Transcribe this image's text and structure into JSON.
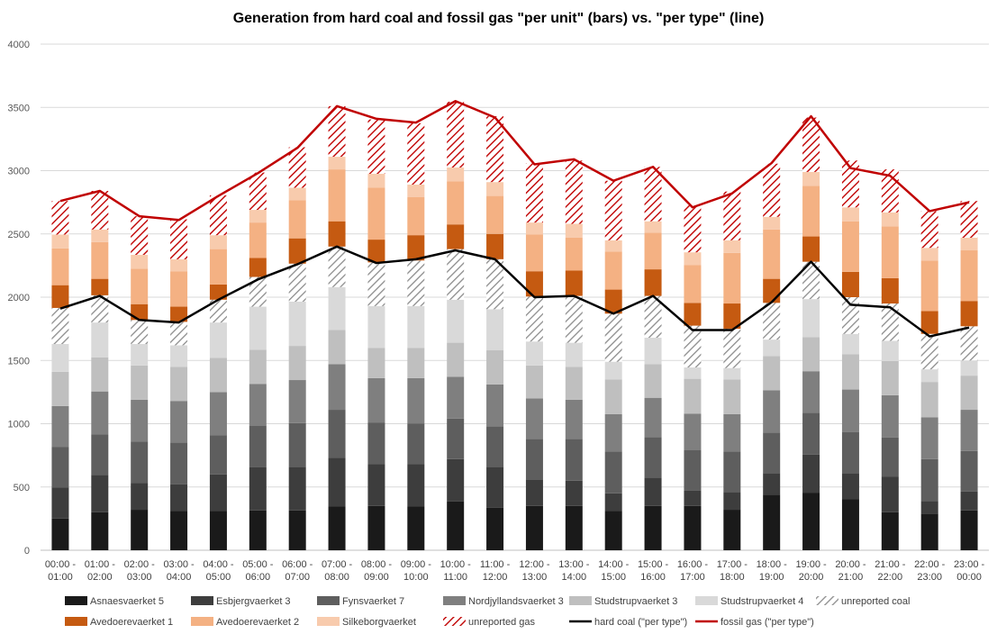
{
  "chart_data": {
    "type": "bar",
    "title": "Generation from hard coal and fossil gas \"per unit\" (bars) vs. \"per type\" (line)",
    "xlabel": "",
    "ylabel": "",
    "ylim": [
      0,
      4000
    ],
    "yticks": [
      0,
      500,
      1000,
      1500,
      2000,
      2500,
      3000,
      3500,
      4000
    ],
    "grid": true,
    "legend_position": "bottom",
    "categories": [
      [
        "00:00 -",
        "01:00"
      ],
      [
        "01:00 -",
        "02:00"
      ],
      [
        "02:00 -",
        "03:00"
      ],
      [
        "03:00 -",
        "04:00"
      ],
      [
        "04:00 -",
        "05:00"
      ],
      [
        "05:00 -",
        "06:00"
      ],
      [
        "06:00 -",
        "07:00"
      ],
      [
        "07:00 -",
        "08:00"
      ],
      [
        "08:00 -",
        "09:00"
      ],
      [
        "09:00 -",
        "10:00"
      ],
      [
        "10:00 -",
        "11:00"
      ],
      [
        "11:00 -",
        "12:00"
      ],
      [
        "12:00 -",
        "13:00"
      ],
      [
        "13:00 -",
        "14:00"
      ],
      [
        "14:00 -",
        "15:00"
      ],
      [
        "15:00 -",
        "16:00"
      ],
      [
        "16:00 -",
        "17:00"
      ],
      [
        "17:00 -",
        "18:00"
      ],
      [
        "18:00 -",
        "19:00"
      ],
      [
        "19:00 -",
        "20:00"
      ],
      [
        "20:00 -",
        "21:00"
      ],
      [
        "21:00 -",
        "22:00"
      ],
      [
        "22:00 -",
        "23:00"
      ],
      [
        "23:00 -",
        "00:00"
      ]
    ],
    "stacked": true,
    "series": [
      {
        "name": "Asnaesvaerket 5",
        "color": "#1a1a1a",
        "pattern": "solid",
        "values": [
          250,
          300,
          320,
          310,
          310,
          315,
          315,
          345,
          350,
          345,
          385,
          335,
          350,
          350,
          310,
          350,
          350,
          320,
          440,
          455,
          405,
          300,
          290,
          315
        ]
      },
      {
        "name": "Esbjergvaerket 3",
        "color": "#3d3d3d",
        "pattern": "solid",
        "values": [
          245,
          295,
          210,
          210,
          290,
          340,
          345,
          385,
          330,
          335,
          335,
          325,
          210,
          200,
          140,
          225,
          120,
          140,
          170,
          300,
          200,
          280,
          100,
          150
        ]
      },
      {
        "name": "Fynsvaerket 7",
        "color": "#5e5e5e",
        "pattern": "solid",
        "values": [
          320,
          320,
          330,
          330,
          310,
          330,
          345,
          380,
          330,
          320,
          320,
          320,
          320,
          330,
          330,
          320,
          320,
          320,
          320,
          330,
          330,
          310,
          330,
          320
        ]
      },
      {
        "name": "Nordjyllandsvaerket 3",
        "color": "#7f7f7f",
        "pattern": "solid",
        "values": [
          325,
          340,
          330,
          330,
          340,
          330,
          340,
          360,
          350,
          360,
          330,
          330,
          320,
          310,
          295,
          310,
          290,
          295,
          335,
          330,
          335,
          335,
          330,
          325
        ]
      },
      {
        "name": "Studstrupvaerket 3",
        "color": "#bfbfbf",
        "pattern": "solid",
        "values": [
          270,
          270,
          270,
          270,
          270,
          270,
          270,
          270,
          240,
          240,
          270,
          270,
          260,
          260,
          275,
          265,
          275,
          275,
          270,
          270,
          280,
          270,
          280,
          270
        ]
      },
      {
        "name": "Studstrupvaerket 4",
        "color": "#d9d9d9",
        "pattern": "solid",
        "values": [
          220,
          275,
          170,
          170,
          280,
          340,
          350,
          340,
          330,
          330,
          340,
          325,
          190,
          190,
          140,
          210,
          90,
          90,
          130,
          300,
          160,
          160,
          100,
          120
        ]
      },
      {
        "name": "unreported coal",
        "color": "#a0a0a0",
        "pattern": "hatch-grey",
        "values": [
          285,
          215,
          190,
          185,
          180,
          235,
          300,
          320,
          345,
          360,
          400,
          395,
          355,
          370,
          380,
          330,
          330,
          310,
          290,
          295,
          290,
          295,
          280,
          270
        ]
      },
      {
        "name": "Avedoerevaerket 1",
        "color": "#c55a11",
        "pattern": "solid",
        "values": [
          180,
          130,
          125,
          120,
          120,
          150,
          200,
          200,
          180,
          200,
          195,
          200,
          200,
          200,
          190,
          210,
          180,
          200,
          190,
          200,
          200,
          200,
          180,
          200
        ]
      },
      {
        "name": "Avedoerevaerket 2",
        "color": "#f4b183",
        "pattern": "solid",
        "values": [
          290,
          290,
          280,
          280,
          280,
          280,
          300,
          410,
          410,
          300,
          340,
          300,
          290,
          260,
          300,
          290,
          300,
          400,
          390,
          400,
          400,
          410,
          400,
          400
        ]
      },
      {
        "name": "Silkeborgvaerket",
        "color": "#f8cbad",
        "pattern": "solid",
        "values": [
          110,
          100,
          110,
          95,
          110,
          100,
          100,
          100,
          110,
          100,
          110,
          110,
          95,
          110,
          90,
          90,
          100,
          100,
          100,
          110,
          110,
          110,
          100,
          100
        ]
      },
      {
        "name": "unreported gas",
        "color": "#c00000",
        "pattern": "hatch-red",
        "values": [
          265,
          305,
          305,
          315,
          315,
          295,
          320,
          400,
          430,
          485,
          520,
          520,
          470,
          500,
          470,
          430,
          375,
          385,
          420,
          430,
          370,
          340,
          290,
          290
        ]
      }
    ],
    "lines": [
      {
        "name": "hard coal (\"per type\")",
        "color": "#000000",
        "values": [
          1910,
          2010,
          1820,
          1800,
          1980,
          2140,
          2260,
          2400,
          2270,
          2300,
          2370,
          2300,
          2000,
          2010,
          1870,
          2010,
          1740,
          1740,
          1960,
          2280,
          1940,
          1920,
          1690,
          1760
        ]
      },
      {
        "name": "fossil gas (\"per type\")",
        "color": "#c00000",
        "values": [
          2760,
          2840,
          2640,
          2610,
          2800,
          2980,
          3180,
          3510,
          3410,
          3380,
          3550,
          3420,
          3050,
          3090,
          2920,
          3030,
          2710,
          2820,
          3060,
          3430,
          3020,
          2960,
          2680,
          2750
        ]
      }
    ]
  }
}
